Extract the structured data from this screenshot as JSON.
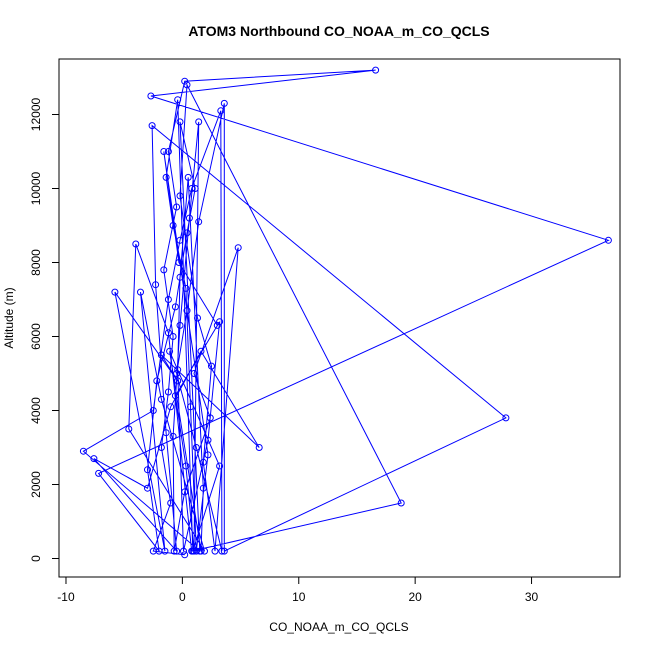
{
  "chart_data": {
    "type": "scatter",
    "title": "ATOM3 Northbound CO_NOAA_m_CO_QCLS",
    "xlabel": "CO_NOAA_m_CO_QCLS",
    "ylabel": "Altitude (m)",
    "xlim": [
      -10.6,
      37.6
    ],
    "ylim": [
      -500,
      13500
    ],
    "xticks": [
      -10,
      0,
      10,
      20,
      30
    ],
    "yticks": [
      0,
      2000,
      4000,
      6000,
      8000,
      10000,
      12000
    ],
    "grid": false,
    "legend": "none",
    "series": [
      {
        "color": "#0000ff",
        "style": "points-and-lines",
        "points": [
          [
            0.2,
            100
          ],
          [
            -2.5,
            200
          ],
          [
            -1.0,
            1500
          ],
          [
            -1.8,
            3000
          ],
          [
            -1.2,
            4500
          ],
          [
            -0.8,
            6000
          ],
          [
            -1.6,
            7800
          ],
          [
            -0.5,
            9500
          ],
          [
            -1.2,
            11000
          ],
          [
            0.2,
            12900
          ],
          [
            16.6,
            13200
          ],
          [
            -2.7,
            12500
          ],
          [
            36.6,
            8600
          ],
          [
            -7.2,
            2300
          ],
          [
            -2.0,
            200
          ],
          [
            -3.0,
            2400
          ],
          [
            -2.2,
            4800
          ],
          [
            -0.6,
            6800
          ],
          [
            0.4,
            8800
          ],
          [
            1.1,
            10000
          ],
          [
            -0.2,
            11800
          ],
          [
            1.5,
            200
          ],
          [
            -8.5,
            2900
          ],
          [
            -2.5,
            4000
          ],
          [
            -1.2,
            7000
          ],
          [
            -0.2,
            8600
          ],
          [
            0.8,
            10000
          ],
          [
            3.3,
            12100
          ],
          [
            3.4,
            200
          ],
          [
            1.2,
            3000
          ],
          [
            -0.5,
            5000
          ],
          [
            0.4,
            6700
          ],
          [
            1.4,
            9100
          ],
          [
            3.6,
            12300
          ],
          [
            3.6,
            200
          ],
          [
            27.8,
            3800
          ],
          [
            -2.6,
            11700
          ],
          [
            -2.3,
            7400
          ],
          [
            -1.4,
            3400
          ],
          [
            -0.5,
            200
          ],
          [
            -7.6,
            2700
          ],
          [
            -3.0,
            1900
          ],
          [
            -1.0,
            4100
          ],
          [
            1.6,
            5600
          ],
          [
            6.6,
            3000
          ],
          [
            -1.8,
            5500
          ],
          [
            -0.4,
            4800
          ],
          [
            -5.8,
            7200
          ],
          [
            -1.5,
            200
          ],
          [
            -3.6,
            7200
          ],
          [
            -1.8,
            4300
          ],
          [
            1.9,
            200
          ],
          [
            -4.6,
            3500
          ],
          [
            -4.0,
            8500
          ],
          [
            -1.2,
            6100
          ],
          [
            0.8,
            200
          ],
          [
            18.8,
            1500
          ],
          [
            0.4,
            12800
          ],
          [
            -0.2,
            9800
          ],
          [
            1.3,
            6500
          ],
          [
            2.5,
            5200
          ],
          [
            1.8,
            2600
          ],
          [
            2.8,
            200
          ],
          [
            4.8,
            8400
          ],
          [
            1.0,
            5000
          ],
          [
            2.4,
            3800
          ],
          [
            0.2,
            1800
          ],
          [
            -0.7,
            200
          ],
          [
            -0.8,
            3300
          ],
          [
            -0.2,
            6300
          ],
          [
            0.6,
            9200
          ],
          [
            1.4,
            11800
          ],
          [
            1.0,
            200
          ],
          [
            0.3,
            2500
          ],
          [
            -0.6,
            4400
          ],
          [
            3.2,
            6400
          ],
          [
            2.2,
            3200
          ],
          [
            0.1,
            200
          ],
          [
            -0.4,
            5100
          ],
          [
            -0.2,
            7600
          ],
          [
            0.5,
            10300
          ],
          [
            1.8,
            1900
          ],
          [
            1.6,
            200
          ],
          [
            -1.1,
            5600
          ],
          [
            3.2,
            2500
          ],
          [
            0.9,
            200
          ],
          [
            -0.4,
            12400
          ],
          [
            -1.4,
            10300
          ],
          [
            -0.8,
            9000
          ],
          [
            0.3,
            7300
          ],
          [
            0.7,
            4100
          ],
          [
            1.2,
            200
          ],
          [
            2.2,
            2800
          ],
          [
            -1.6,
            11000
          ],
          [
            -0.3,
            8000
          ],
          [
            3.0,
            6300
          ]
        ]
      }
    ]
  }
}
